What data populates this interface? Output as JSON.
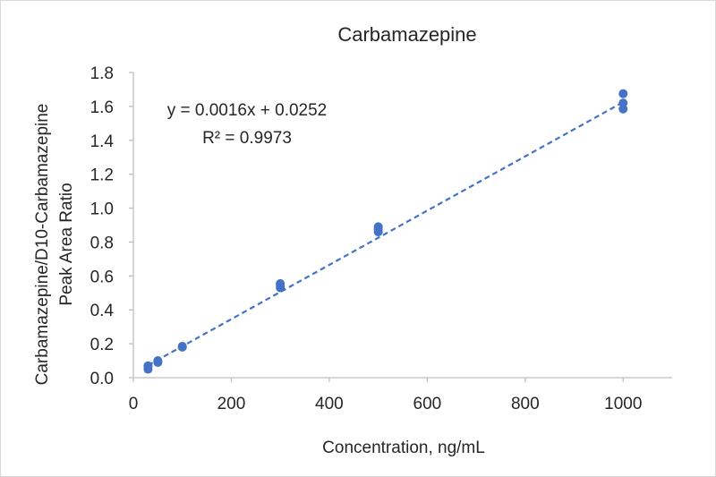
{
  "chart_data": {
    "type": "scatter",
    "title": "Carbamazepine",
    "xlabel": "Concentration, ng/mL",
    "ylabel_lines": [
      "Carbamazepine/D10-Carbamazepine",
      "Peak Area Ratio"
    ],
    "xlim": [
      0,
      1100
    ],
    "ylim": [
      0,
      1.8
    ],
    "xticks": [
      0,
      200,
      400,
      600,
      800,
      1000
    ],
    "yticks": [
      0.0,
      0.2,
      0.4,
      0.6,
      0.8,
      1.0,
      1.2,
      1.4,
      1.6,
      1.8
    ],
    "ytick_decimals": 1,
    "grid": false,
    "series": [
      {
        "color": "#4472c4",
        "points": [
          {
            "x": 30,
            "y": 0.05
          },
          {
            "x": 30,
            "y": 0.065
          },
          {
            "x": 30,
            "y": 0.07
          },
          {
            "x": 50,
            "y": 0.09
          },
          {
            "x": 50,
            "y": 0.095
          },
          {
            "x": 50,
            "y": 0.1
          },
          {
            "x": 100,
            "y": 0.18
          },
          {
            "x": 100,
            "y": 0.185
          },
          {
            "x": 300,
            "y": 0.53
          },
          {
            "x": 300,
            "y": 0.545
          },
          {
            "x": 300,
            "y": 0.555
          },
          {
            "x": 500,
            "y": 0.86
          },
          {
            "x": 500,
            "y": 0.875
          },
          {
            "x": 500,
            "y": 0.89
          },
          {
            "x": 1000,
            "y": 1.585
          },
          {
            "x": 1000,
            "y": 1.62
          },
          {
            "x": 1000,
            "y": 1.675
          }
        ]
      }
    ],
    "trendline": {
      "type": "linear",
      "slope": 0.0016,
      "intercept": 0.0252,
      "x_range": [
        30,
        1000
      ],
      "color": "#4472c4",
      "style": "dashed",
      "equation_label": "y = 0.0016x + 0.0252",
      "r2_label": "R² = 0.9973"
    }
  }
}
